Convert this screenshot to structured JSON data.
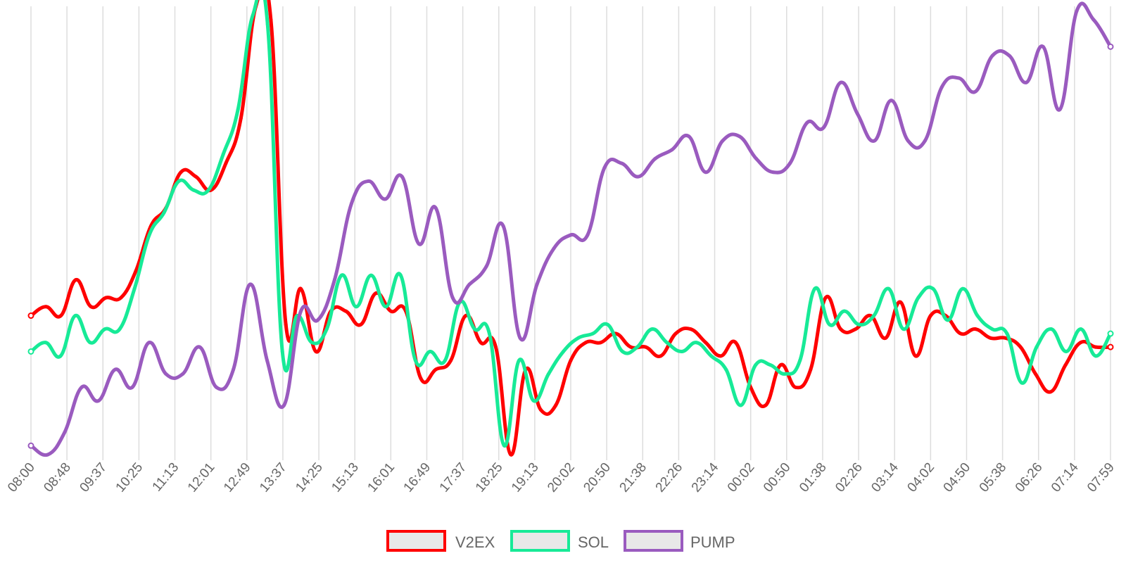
{
  "chart_data": {
    "type": "line",
    "title": "",
    "xlabel": "",
    "ylabel": "",
    "ylim": [
      0,
      100
    ],
    "grid": true,
    "legend": "bottom",
    "x_ticks": [
      "08:00",
      "08:48",
      "09:37",
      "10:25",
      "11:13",
      "12:01",
      "12:49",
      "13:37",
      "14:25",
      "15:13",
      "16:01",
      "16:49",
      "17:37",
      "18:25",
      "19:13",
      "20:02",
      "20:50",
      "21:38",
      "22:26",
      "23:14",
      "00:02",
      "00:50",
      "01:38",
      "02:26",
      "03:14",
      "04:02",
      "04:50",
      "05:38",
      "06:26",
      "07:14",
      "07:59"
    ],
    "series": [
      {
        "name": "V2EX",
        "color": "#ff0000",
        "values": [
          31,
          33,
          31,
          39,
          33,
          35,
          35,
          41,
          51,
          55,
          63,
          62,
          59,
          65,
          75,
          100,
          97,
          29,
          37,
          23,
          32,
          32,
          29,
          36,
          32,
          32,
          17,
          19,
          21,
          31,
          25,
          24,
          0,
          19,
          10,
          11,
          21,
          25,
          25,
          27,
          24,
          24,
          22,
          27,
          28,
          25,
          22,
          25,
          15,
          11,
          20,
          15,
          19,
          35,
          28,
          28,
          31,
          26,
          34,
          22,
          31,
          31,
          27,
          28,
          26,
          26,
          24,
          18,
          14,
          20,
          25,
          24,
          24
        ]
      },
      {
        "name": "SOL",
        "color": "#17ea97",
        "values": [
          23,
          25,
          22,
          31,
          25,
          28,
          28,
          37,
          49,
          54,
          61,
          59,
          59,
          67,
          77,
          98,
          96,
          23,
          31,
          25,
          28,
          40,
          33,
          40,
          33,
          40,
          21,
          23,
          21,
          34,
          28,
          27,
          2,
          21,
          12,
          18,
          23,
          26,
          27,
          29,
          23,
          24,
          28,
          25,
          23,
          25,
          22,
          19,
          11,
          20,
          20,
          18,
          21,
          37,
          29,
          32,
          29,
          31,
          37,
          28,
          35,
          37,
          30,
          37,
          31,
          28,
          27,
          16,
          24,
          28,
          23,
          28,
          22,
          27
        ]
      },
      {
        "name": "PUMP",
        "color": "#9a5bbf",
        "values": [
          2,
          0,
          5,
          15,
          12,
          19,
          15,
          25,
          18,
          18,
          24,
          15,
          19,
          38,
          21,
          11,
          32,
          30,
          39,
          56,
          61,
          57,
          62,
          47,
          55,
          35,
          38,
          42,
          51,
          26,
          38,
          46,
          49,
          49,
          64,
          65,
          62,
          66,
          68,
          71,
          63,
          70,
          71,
          66,
          63,
          65,
          74,
          73,
          83,
          76,
          70,
          79,
          70,
          70,
          82,
          84,
          81,
          89,
          89,
          83,
          91,
          77,
          99,
          97,
          91
        ]
      }
    ]
  },
  "legend": {
    "items": [
      {
        "name": "V2EX",
        "color": "#ff0000"
      },
      {
        "name": "SOL",
        "color": "#17ea97"
      },
      {
        "name": "PUMP",
        "color": "#9a5bbf"
      }
    ]
  }
}
